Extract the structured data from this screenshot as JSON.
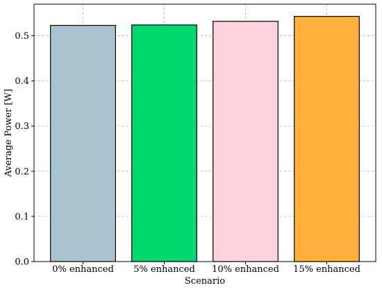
{
  "chart_data": {
    "type": "bar",
    "categories": [
      "0% enhanced",
      "5% enhanced",
      "10% enhanced",
      "15% enhanced"
    ],
    "values": [
      0.523,
      0.524,
      0.532,
      0.543
    ],
    "colors": [
      "#a8c5cf",
      "#00d96f",
      "#ffd1dc",
      "#ffb03b"
    ],
    "xlabel": "Scenario",
    "ylabel": "Average Power [W]",
    "ylim": [
      0,
      0.57
    ],
    "yticks": [
      0.0,
      0.1,
      0.2,
      0.3,
      0.4,
      0.5
    ],
    "ytick_labels": [
      "0.0",
      "0.1",
      "0.2",
      "0.3",
      "0.4",
      "0.5"
    ],
    "grid": true
  }
}
